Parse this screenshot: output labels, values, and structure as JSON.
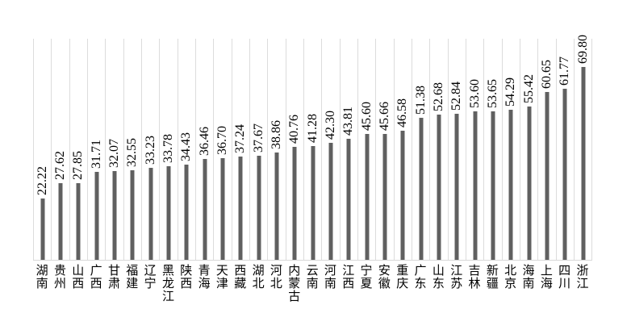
{
  "chart_data": {
    "type": "bar",
    "title": "",
    "xlabel": "",
    "ylabel": "",
    "categories": [
      "湖南",
      "贵州",
      "山西",
      "广西",
      "甘肃",
      "福建",
      "辽宁",
      "黑龙江",
      "陕西",
      "青海",
      "天津",
      "西藏",
      "湖北",
      "河北",
      "内蒙古",
      "云南",
      "河南",
      "江西",
      "宁夏",
      "安徽",
      "重庆",
      "广东",
      "山东",
      "江苏",
      "吉林",
      "新疆",
      "北京",
      "海南",
      "上海",
      "四川",
      "浙江"
    ],
    "values": [
      22.22,
      27.62,
      27.85,
      31.71,
      32.07,
      32.55,
      33.23,
      33.78,
      34.43,
      36.46,
      36.7,
      37.24,
      37.67,
      38.86,
      40.76,
      41.28,
      42.3,
      43.81,
      45.6,
      45.66,
      46.58,
      51.38,
      52.68,
      52.84,
      53.6,
      53.65,
      54.29,
      55.42,
      60.65,
      61.77,
      69.8
    ],
    "value_labels": [
      "22.22",
      "27.62",
      "27.85",
      "31.71",
      "32.07",
      "32.55",
      "33.23",
      "33.78",
      "34.43",
      "36.46",
      "36.70",
      "37.24",
      "37.67",
      "38.86",
      "40.76",
      "41.28",
      "42.30",
      "43.81",
      "45.60",
      "45.66",
      "46.58",
      "51.38",
      "52.68",
      "52.84",
      "53.60",
      "53.65",
      "54.29",
      "55.42",
      "60.65",
      "61.77",
      "69.80"
    ],
    "ylim": [
      0,
      80
    ],
    "grid": "vertical category separator lines only",
    "legend": "none",
    "value_label_orientation": "rotated 90 CCW, above bar",
    "category_label_orientation": "vertical stacked characters",
    "bar_color": "#606060",
    "gridline_color": "#dcdcdc",
    "axis_line_color": "#d9d9d9",
    "text_color": "#000000"
  }
}
